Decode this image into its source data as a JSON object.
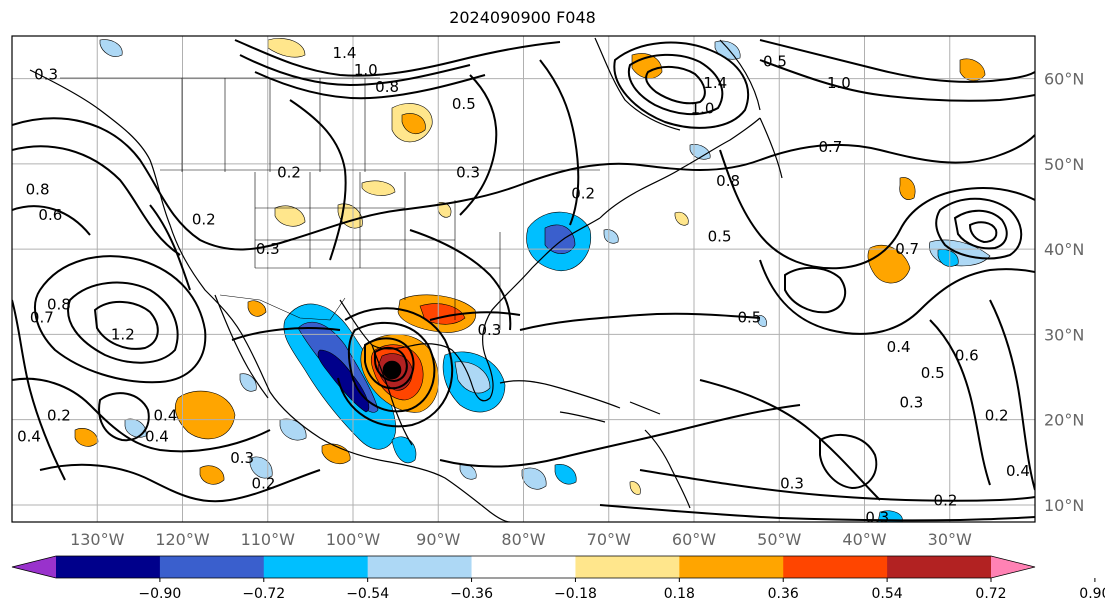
{
  "title": "2024090900 F048",
  "map": {
    "lon_range": [
      -140,
      -20
    ],
    "lat_range": [
      8,
      65
    ],
    "grid": true,
    "lon_ticks": [
      {
        "value": -130,
        "label": "130°W"
      },
      {
        "value": -120,
        "label": "120°W"
      },
      {
        "value": -110,
        "label": "110°W"
      },
      {
        "value": -100,
        "label": "100°W"
      },
      {
        "value": -90,
        "label": "90°W"
      },
      {
        "value": -80,
        "label": "80°W"
      },
      {
        "value": -70,
        "label": "70°W"
      },
      {
        "value": -60,
        "label": "60°W"
      },
      {
        "value": -50,
        "label": "50°W"
      },
      {
        "value": -40,
        "label": "40°W"
      },
      {
        "value": -30,
        "label": "30°W"
      }
    ],
    "lat_ticks": [
      {
        "value": 60,
        "label": "60°N"
      },
      {
        "value": 50,
        "label": "50°N"
      },
      {
        "value": 40,
        "label": "40°N"
      },
      {
        "value": 30,
        "label": "30°N"
      },
      {
        "value": 20,
        "label": "20°N"
      },
      {
        "value": 10,
        "label": "10°N"
      }
    ],
    "contour_labels": [
      {
        "text": "0.3",
        "lon": -136,
        "lat": 60.5
      },
      {
        "text": "1.4",
        "lon": -101,
        "lat": 63
      },
      {
        "text": "1.0",
        "lon": -98.5,
        "lat": 61
      },
      {
        "text": "0.8",
        "lon": -96,
        "lat": 59
      },
      {
        "text": "0.5",
        "lon": -87,
        "lat": 57
      },
      {
        "text": "0.3",
        "lon": -86.5,
        "lat": 49
      },
      {
        "text": "0.2",
        "lon": -107.5,
        "lat": 49
      },
      {
        "text": "0.2",
        "lon": -117.5,
        "lat": 43.5
      },
      {
        "text": "0.3",
        "lon": -110,
        "lat": 40
      },
      {
        "text": "0.2",
        "lon": -73,
        "lat": 46.5
      },
      {
        "text": "0.8",
        "lon": -137,
        "lat": 47
      },
      {
        "text": "0.6",
        "lon": -135.5,
        "lat": 44
      },
      {
        "text": "0.8",
        "lon": -134.5,
        "lat": 33.5
      },
      {
        "text": "0.7",
        "lon": -136.5,
        "lat": 32
      },
      {
        "text": "1.2",
        "lon": -127,
        "lat": 30
      },
      {
        "text": "0.3",
        "lon": -84,
        "lat": 30.5
      },
      {
        "text": "0.2",
        "lon": -134.5,
        "lat": 20.5
      },
      {
        "text": "0.4",
        "lon": -122,
        "lat": 20.5
      },
      {
        "text": "0.4",
        "lon": -123,
        "lat": 18
      },
      {
        "text": "0.4",
        "lon": -138,
        "lat": 18
      },
      {
        "text": "0.3",
        "lon": -113,
        "lat": 15.5
      },
      {
        "text": "0.2",
        "lon": -110.5,
        "lat": 12.5
      },
      {
        "text": "1.0",
        "lon": -59,
        "lat": 56.5
      },
      {
        "text": "1.4",
        "lon": -57.5,
        "lat": 59.5
      },
      {
        "text": "0.5",
        "lon": -50.5,
        "lat": 62
      },
      {
        "text": "1.0",
        "lon": -43,
        "lat": 59.5
      },
      {
        "text": "0.7",
        "lon": -44,
        "lat": 52
      },
      {
        "text": "0.8",
        "lon": -56,
        "lat": 48
      },
      {
        "text": "0.5",
        "lon": -57,
        "lat": 41.5
      },
      {
        "text": "0.5",
        "lon": -53.5,
        "lat": 32
      },
      {
        "text": "0.4",
        "lon": -36,
        "lat": 28.5
      },
      {
        "text": "0.5",
        "lon": -32,
        "lat": 25.5
      },
      {
        "text": "0.6",
        "lon": -28,
        "lat": 27.5
      },
      {
        "text": "0.3",
        "lon": -34.5,
        "lat": 22
      },
      {
        "text": "0.2",
        "lon": -24.5,
        "lat": 20.5
      },
      {
        "text": "0.3",
        "lon": -48.5,
        "lat": 12.5
      },
      {
        "text": "0.4",
        "lon": -22,
        "lat": 14
      },
      {
        "text": "0.2",
        "lon": -30.5,
        "lat": 10.5
      },
      {
        "text": "0.3",
        "lon": -38.5,
        "lat": 8.5
      },
      {
        "text": "0.7",
        "lon": -35,
        "lat": 40
      }
    ]
  },
  "colorbar": {
    "ticks": [
      "−0.90",
      "−0.72",
      "−0.54",
      "−0.36",
      "−0.18",
      "0.18",
      "0.36",
      "0.54",
      "0.72",
      "0.90"
    ],
    "colors": [
      "#9932cc",
      "#00008b",
      "#3a5fcd",
      "#00bfff",
      "#add8f5",
      "#ffffff",
      "#ffe68c",
      "#ffa500",
      "#ff4500",
      "#b22222",
      "#ff82b4"
    ]
  }
}
